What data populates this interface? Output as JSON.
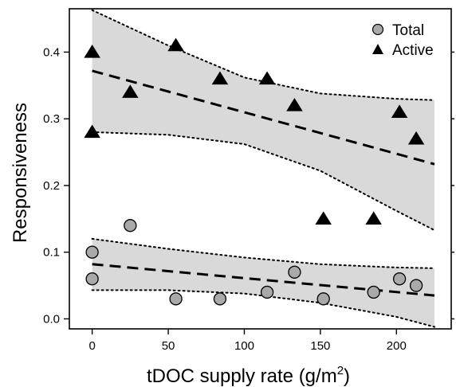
{
  "chart_data": {
    "type": "scatter",
    "title": "",
    "xlabel": "tDOC supply rate (g/m",
    "xlabel_superscript": "2",
    "xlabel_suffix": ")",
    "ylabel": "Responsiveness",
    "xlim": [
      -15,
      236
    ],
    "ylim": [
      -0.015,
      0.465
    ],
    "x_ticks": [
      0,
      50,
      100,
      150,
      200
    ],
    "y_ticks": [
      0.0,
      0.1,
      0.2,
      0.3,
      0.4
    ],
    "y_tick_labels": [
      "0.0",
      "0.1",
      "0.2",
      "0.3",
      "0.4"
    ],
    "grid": false,
    "legend_position": "top-right",
    "series": [
      {
        "name": "Total",
        "marker": "circle",
        "color": "#a9a9a9",
        "points": [
          [
            0,
            0.1
          ],
          [
            0,
            0.06
          ],
          [
            25,
            0.14
          ],
          [
            55,
            0.03
          ],
          [
            84,
            0.03
          ],
          [
            115,
            0.04
          ],
          [
            133,
            0.07
          ],
          [
            152,
            0.03
          ],
          [
            185,
            0.04
          ],
          [
            202,
            0.06
          ],
          [
            213,
            0.05
          ]
        ],
        "fit": {
          "x": [
            0,
            225
          ],
          "y": [
            0.082,
            0.035
          ]
        },
        "band_upper": [
          [
            0,
            0.12
          ],
          [
            50,
            0.105
          ],
          [
            100,
            0.092
          ],
          [
            150,
            0.082
          ],
          [
            200,
            0.077
          ],
          [
            225,
            0.076
          ]
        ],
        "band_lower": [
          [
            0,
            0.043
          ],
          [
            50,
            0.043
          ],
          [
            100,
            0.038
          ],
          [
            150,
            0.024
          ],
          [
            200,
            0.003
          ],
          [
            225,
            -0.012
          ]
        ]
      },
      {
        "name": "Active",
        "marker": "triangle",
        "color": "#000000",
        "points": [
          [
            0,
            0.4
          ],
          [
            0,
            0.28
          ],
          [
            25,
            0.34
          ],
          [
            55,
            0.41
          ],
          [
            84,
            0.36
          ],
          [
            115,
            0.36
          ],
          [
            133,
            0.32
          ],
          [
            152,
            0.15
          ],
          [
            185,
            0.15
          ],
          [
            202,
            0.31
          ],
          [
            213,
            0.27
          ]
        ],
        "fit": {
          "x": [
            0,
            225
          ],
          "y": [
            0.372,
            0.232
          ]
        },
        "band_upper": [
          [
            0,
            0.463
          ],
          [
            50,
            0.41
          ],
          [
            100,
            0.362
          ],
          [
            150,
            0.338
          ],
          [
            200,
            0.33
          ],
          [
            225,
            0.328
          ]
        ],
        "band_lower": [
          [
            0,
            0.28
          ],
          [
            50,
            0.276
          ],
          [
            100,
            0.262
          ],
          [
            150,
            0.222
          ],
          [
            200,
            0.162
          ],
          [
            225,
            0.133
          ]
        ]
      }
    ],
    "colors": {
      "band_fill": "#d9d9d9",
      "axis": "#000000"
    }
  }
}
